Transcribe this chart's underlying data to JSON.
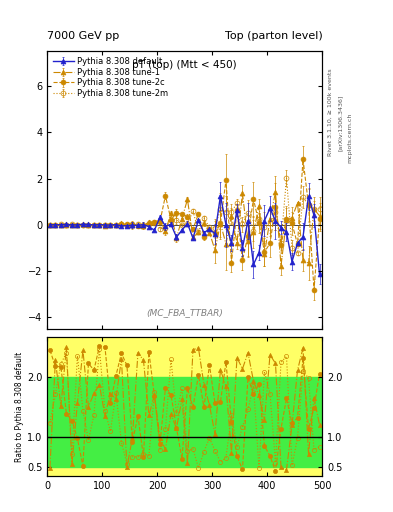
{
  "title_left": "7000 GeV pp",
  "title_right": "Top (parton level)",
  "plot_title": "pT (top) (Mtt < 450)",
  "ylabel_ratio": "Ratio to Pythia 8.308 default",
  "watermark": "(MC_FBA_TTBAR)",
  "rivet_label": "Rivet 3.1.10, ≥ 100k events",
  "arxiv_label": "[arXiv:1306.3436]",
  "mcplots_label": "mcplots.cern.ch",
  "xlim": [
    0,
    500
  ],
  "ylim_main": [
    -4.5,
    7.5
  ],
  "ylim_ratio": [
    0.35,
    2.65
  ],
  "ratio_yticks": [
    0.5,
    1.0,
    2.0
  ],
  "main_yticks": [
    -4,
    -2,
    0,
    2,
    4,
    6
  ],
  "xticks": [
    0,
    100,
    200,
    300,
    400,
    500
  ],
  "series": [
    {
      "label": "Pythia 8.308 default",
      "color": "#2222cc",
      "linestyle": "-",
      "marker": "^",
      "markersize": 3.5,
      "linewidth": 1.0,
      "filled": true,
      "zorder": 5
    },
    {
      "label": "Pythia 8.308 tune-1",
      "color": "#cc8800",
      "linestyle": "-.",
      "marker": "^",
      "markersize": 3.5,
      "linewidth": 0.8,
      "filled": true,
      "zorder": 4
    },
    {
      "label": "Pythia 8.308 tune-2c",
      "color": "#cc8800",
      "linestyle": "--",
      "marker": "o",
      "markersize": 3.5,
      "linewidth": 0.8,
      "filled": true,
      "zorder": 3
    },
    {
      "label": "Pythia 8.308 tune-2m",
      "color": "#cc8800",
      "linestyle": ":",
      "marker": "o",
      "markersize": 3.5,
      "linewidth": 0.8,
      "filled": false,
      "zorder": 2
    }
  ],
  "green_band_color": "#44ee44",
  "yellow_band_color": "#ffff66",
  "ratio_line_color": "#000000",
  "bg_color": "#ffffff"
}
